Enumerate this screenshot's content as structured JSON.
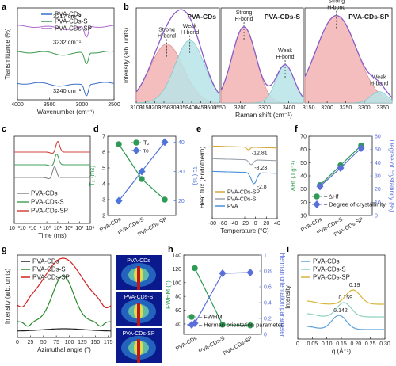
{
  "figure": {
    "panel_labels": [
      "a",
      "b",
      "c",
      "d",
      "e",
      "f",
      "g",
      "h",
      "i"
    ]
  },
  "chart_data": [
    {
      "id": "a",
      "type": "line",
      "xlabel": "Wavenumber (cm⁻¹)",
      "ylabel": "Transmittance (%)",
      "xlim": [
        4000,
        2500
      ],
      "xticks": [
        4000,
        3500,
        3000,
        2500
      ],
      "series": [
        {
          "name": "PVA-CDs",
          "color": "#3a6fc4",
          "offset": 0.18,
          "peak_label": "3240 cm⁻¹"
        },
        {
          "name": "PVA-CDs-S",
          "color": "#3a9a4e",
          "offset": 0.52,
          "peak_label": "3232 cm⁻¹"
        },
        {
          "name": "PVA-CDs-SP",
          "color": "#b06bd0",
          "offset": 0.8,
          "peak_label": "3217 cm⁻¹"
        }
      ]
    },
    {
      "id": "b",
      "type": "area",
      "ylabel": "Intensity (arb. units)",
      "xlabel": "Raman shift (cm⁻¹)",
      "subplots": [
        {
          "title": "PVA-CDs",
          "xlim": [
            3100,
            3550
          ],
          "xticks": [
            3100,
            3150,
            3200,
            3250,
            3300,
            3350,
            3400,
            3450,
            3500,
            3550
          ],
          "strong": {
            "center": 3265,
            "width": 90,
            "amp": 0.62,
            "label": "Strong H-bond"
          },
          "weak": {
            "center": 3390,
            "width": 80,
            "amp": 0.66,
            "label": "Weak H-bond"
          }
        },
        {
          "title": "PVA-CDs-S",
          "xlim": [
            3120,
            3460
          ],
          "xticks": [
            3200,
            3300,
            3400
          ],
          "strong": {
            "center": 3215,
            "width": 50,
            "amp": 0.8,
            "label": "Strong H-bond"
          },
          "weak": {
            "center": 3385,
            "width": 38,
            "amp": 0.4,
            "label": "Weak H-bond"
          }
        },
        {
          "title": "PVA-CDs-SP",
          "xlim": [
            3140,
            3375
          ],
          "xticks": [
            3150,
            3200,
            3250,
            3300,
            3350
          ],
          "strong": {
            "center": 3225,
            "width": 55,
            "amp": 0.92,
            "label": "Strong H-bond"
          },
          "weak": {
            "center": 3340,
            "width": 22,
            "amp": 0.12,
            "label": "Weak H-bond"
          }
        }
      ]
    },
    {
      "id": "c",
      "type": "line",
      "xlabel": "Time (ms)",
      "xticks": [
        "10⁻³",
        "10⁻²",
        "10⁻¹",
        "10⁰",
        "10¹",
        "10²",
        "10³",
        "10⁴"
      ],
      "series": [
        {
          "name": "PVA-CDs",
          "color": "#888888",
          "log_center": 0.7
        },
        {
          "name": "PVA-CDs-S",
          "color": "#4aa35b",
          "log_center": 0.9
        },
        {
          "name": "PVA-CDs-SP",
          "color": "#d2443b",
          "log_center": 1.0
        }
      ]
    },
    {
      "id": "d",
      "type": "line",
      "categories": [
        "PVA-CDs",
        "PVA-CDs-S",
        "PVA-CDs-SP"
      ],
      "ylabel_left": "T₂ (ms)",
      "ylabel_right": "τc (ns)",
      "ylim_left": [
        2,
        7
      ],
      "yticks_left": [
        2,
        3,
        4,
        5,
        6,
        7
      ],
      "ylim_right": [
        15,
        42
      ],
      "yticks_right": [
        20,
        30,
        40
      ],
      "series": [
        {
          "name": "T₂",
          "axis": "left",
          "color": "#2e9a55",
          "marker": "circle",
          "values": [
            6.5,
            4.3,
            3.0
          ]
        },
        {
          "name": "τc",
          "axis": "right",
          "color": "#4f74d9",
          "marker": "diamond",
          "values": [
            20,
            30,
            40
          ]
        }
      ]
    },
    {
      "id": "e",
      "type": "line",
      "xlabel": "Temperature (°C)",
      "ylabel": "Heat flux (Endotherm)",
      "xlim": [
        -80,
        40
      ],
      "xticks": [
        -80,
        -60,
        -40,
        -20,
        0,
        20,
        40
      ],
      "series": [
        {
          "name": "PVA-CDs-SP",
          "color": "#d4a73a",
          "dip_t": -13,
          "depth": 0.7,
          "label": "-12.81"
        },
        {
          "name": "PVA-CDs-S",
          "color": "#9aa3ad",
          "dip_t": -8,
          "depth": 1.2,
          "label": "-8.23"
        },
        {
          "name": "PVA",
          "color": "#4a8fd8",
          "dip_t": -3,
          "depth": 2.8,
          "label": "-2.8"
        }
      ]
    },
    {
      "id": "f",
      "type": "line",
      "categories": [
        "PVA-CDs",
        "PVA-CDs-S",
        "PVA-CDs-SP"
      ],
      "ylabel_left": "ΔHf (J g⁻¹)",
      "ylabel_right": "Degree of crystallinity (%)",
      "ylim_left": [
        10,
        70
      ],
      "yticks_left": [
        10,
        20,
        30,
        40,
        50,
        60,
        70
      ],
      "ylim_right": [
        0,
        60
      ],
      "yticks_right": [
        0,
        10,
        20,
        30,
        40,
        50,
        60
      ],
      "series": [
        {
          "name": "ΔHf",
          "axis": "left",
          "color": "#2e9a55",
          "marker": "circle",
          "values": [
            33,
            48,
            63
          ]
        },
        {
          "name": "Degree of crystallinity",
          "axis": "right",
          "color": "#5b6fd9",
          "marker": "diamond",
          "values": [
            22,
            36,
            51
          ]
        }
      ]
    },
    {
      "id": "g",
      "type": "line",
      "xlabel": "Azimuthal angle (°)",
      "ylabel": "Intensity (arb. units)",
      "xlim": [
        0,
        180
      ],
      "xticks": [
        0,
        25,
        50,
        75,
        100,
        125,
        150,
        175
      ],
      "series": [
        {
          "name": "PVA-CDs",
          "color": "#222222"
        },
        {
          "name": "PVA-CDs-S",
          "color": "#2a8a2a"
        },
        {
          "name": "PVA-CDs-SP",
          "color": "#d42020"
        }
      ],
      "insets": [
        "PVA-CDs",
        "PVA-CDs-S",
        "PVA-CDs-SP"
      ]
    },
    {
      "id": "h",
      "type": "line",
      "categories": [
        "PVA-CDs",
        "PVA-CDs-S",
        "PVA-CDs-SP"
      ],
      "ylabel_left": "FWHM (°)",
      "ylabel_right": "Herman orientation parameter",
      "ylim_left": [
        25,
        140
      ],
      "yticks_left": [
        40,
        60,
        80,
        100,
        120,
        140
      ],
      "ylim_right": [
        0,
        1.0
      ],
      "yticks_right": [
        0.0,
        0.2,
        0.4,
        0.6,
        0.8,
        1.0
      ],
      "series": [
        {
          "name": "FWHM",
          "axis": "left",
          "color": "#2e9a55",
          "marker": "circle",
          "values": [
            121,
            39,
            38
          ]
        },
        {
          "name": "Herman orientation parameter",
          "axis": "right",
          "color": "#5b6fd9",
          "marker": "diamond",
          "values": [
            0.14,
            0.77,
            0.78
          ]
        }
      ]
    },
    {
      "id": "i",
      "type": "line",
      "xlabel": "q (Å⁻¹)",
      "ylabel": "Intensity",
      "xlim": [
        0,
        0.3
      ],
      "xticks": [
        "0",
        "0.05",
        "0.10",
        "0.15",
        "0.20",
        "0.25",
        "0.30"
      ],
      "series": [
        {
          "name": "PVA-CDs",
          "color": "#5aa0dc",
          "peak": 0.142,
          "offset": 0.0,
          "label": "0.142"
        },
        {
          "name": "PVA-CDs-S",
          "color": "#8fd0c0",
          "peak": 0.159,
          "offset": 0.25,
          "label": "0.159"
        },
        {
          "name": "PVA-CDs-SP",
          "color": "#d8b43a",
          "peak": 0.19,
          "offset": 0.5,
          "label": "0.19"
        }
      ]
    }
  ]
}
